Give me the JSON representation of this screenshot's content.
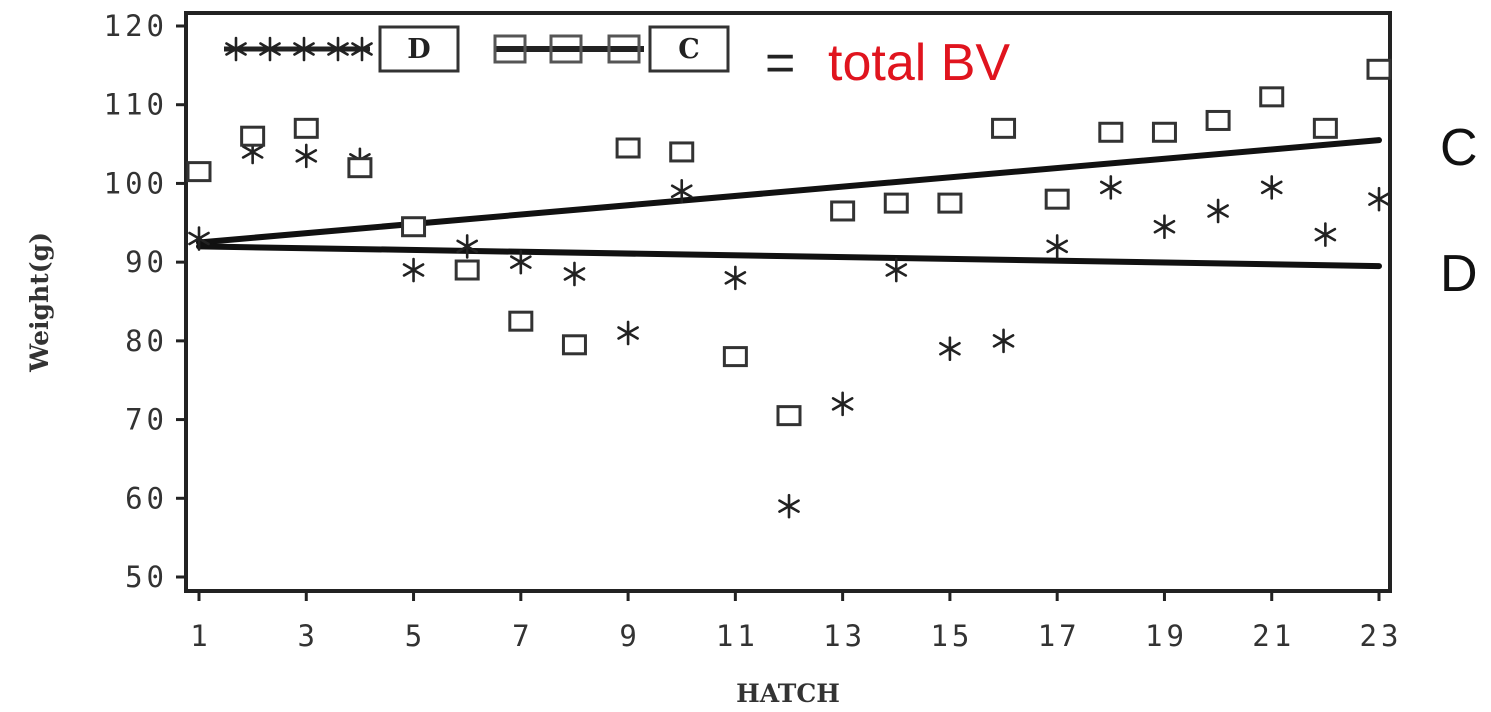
{
  "chart_data": {
    "type": "scatter",
    "title": "",
    "xlabel": "HATCH",
    "ylabel": "Weight(g)",
    "xlim": [
      1,
      23
    ],
    "ylim": [
      50,
      120
    ],
    "x_ticks": [
      1,
      3,
      5,
      7,
      9,
      11,
      13,
      15,
      17,
      19,
      21,
      23
    ],
    "y_ticks": [
      50,
      60,
      70,
      80,
      90,
      100,
      110,
      120
    ],
    "legend": {
      "placement": "top-left",
      "entries": [
        {
          "label": "D",
          "marker": "asterisk"
        },
        {
          "label": "C",
          "marker": "square"
        }
      ],
      "annotation_eq": "=",
      "annotation": "total BV",
      "annotation_color": "#e0141e"
    },
    "series": [
      {
        "name": "D",
        "marker": "asterisk",
        "x": [
          1,
          2,
          3,
          4,
          5,
          6,
          7,
          8,
          9,
          10,
          11,
          12,
          13,
          14,
          15,
          16,
          17,
          18,
          19,
          20,
          21,
          22,
          23
        ],
        "y": [
          93,
          104,
          103.5,
          103,
          89,
          92,
          90,
          88.5,
          81,
          99,
          88,
          59,
          72,
          89,
          79,
          80,
          92,
          99.5,
          94.5,
          96.5,
          99.5,
          93.5,
          98
        ]
      },
      {
        "name": "C",
        "marker": "square",
        "x": [
          1,
          2,
          3,
          4,
          5,
          6,
          7,
          8,
          9,
          10,
          11,
          12,
          13,
          14,
          15,
          16,
          17,
          18,
          19,
          20,
          21,
          22,
          23
        ],
        "y": [
          101.5,
          106,
          107,
          102,
          94.5,
          89,
          82.5,
          79.5,
          104.5,
          104,
          78,
          70.5,
          96.5,
          97.5,
          97.5,
          107,
          98,
          106.5,
          106.5,
          108,
          111,
          107,
          114.5
        ]
      }
    ],
    "trend_lines": [
      {
        "series": "C",
        "x": [
          1,
          23
        ],
        "y": [
          92.5,
          105.5
        ],
        "end_label": "C"
      },
      {
        "series": "D",
        "x": [
          1,
          23
        ],
        "y": [
          92,
          89.5
        ],
        "end_label": "D"
      }
    ],
    "grid": false
  }
}
